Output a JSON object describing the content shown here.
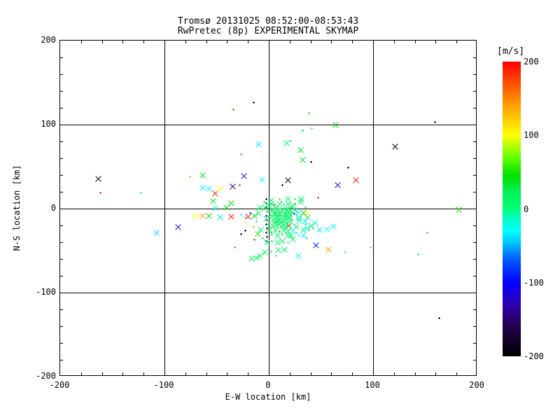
{
  "title": {
    "line1": "Tromsø 20131025 08:52:00-08:53:43",
    "line2": "RwPretec (8p) EXPERIMENTAL SKYMAP"
  },
  "axes": {
    "x": {
      "label": "E-W location [km]",
      "min": -200,
      "max": 200,
      "major_ticks": [
        -200,
        -100,
        0,
        100,
        200
      ],
      "minor_step": 20,
      "gridlines": [
        -100,
        0,
        100
      ]
    },
    "y": {
      "label": "N-S location [km]",
      "min": -200,
      "max": 200,
      "major_ticks": [
        200,
        100,
        0,
        -100,
        -200
      ],
      "minor_step": 20,
      "gridlines": [
        -100,
        0,
        100
      ]
    }
  },
  "colorbar": {
    "label": "[m/s]",
    "min": -200,
    "max": 200,
    "ticks": [
      200,
      100,
      0,
      -100,
      -200
    ],
    "stops": [
      [
        -200,
        "#000000"
      ],
      [
        -160,
        "#20004a"
      ],
      [
        -130,
        "#3000b0"
      ],
      [
        -100,
        "#0000ff"
      ],
      [
        -70,
        "#0055ff"
      ],
      [
        -45,
        "#00c8ff"
      ],
      [
        -30,
        "#00ffff"
      ],
      [
        -10,
        "#00ffb4"
      ],
      [
        0,
        "#00ff78"
      ],
      [
        25,
        "#00f050"
      ],
      [
        45,
        "#00e000"
      ],
      [
        70,
        "#64ff00"
      ],
      [
        100,
        "#ffff00"
      ],
      [
        140,
        "#ffa000"
      ],
      [
        170,
        "#ff5000"
      ],
      [
        200,
        "#ff0000"
      ]
    ]
  },
  "chart_data": {
    "type": "scatter",
    "title": "Tromsø 20131025 08:52:00-08:53:43 RwPretec (8p) EXPERIMENTAL SKYMAP",
    "xlabel": "E-W location [km]",
    "ylabel": "N-S location [km]",
    "value_unit": "m/s",
    "xlim": [
      -200,
      200
    ],
    "ylim": [
      -200,
      200
    ],
    "vlim": [
      -200,
      200
    ],
    "grid": true,
    "markers": {
      "x": "cross",
      "d": "small-dot"
    },
    "points": [
      [
        -164,
        36,
        -200,
        "x"
      ],
      [
        -162,
        19,
        195,
        "d"
      ],
      [
        -123,
        19,
        -35,
        "d"
      ],
      [
        -108,
        -28,
        -40,
        "x"
      ],
      [
        -87,
        -22,
        -90,
        "x"
      ],
      [
        -76,
        38,
        140,
        "d"
      ],
      [
        -71,
        -8,
        100,
        "x"
      ],
      [
        -64,
        -8,
        140,
        "x"
      ],
      [
        -64,
        40,
        40,
        "x"
      ],
      [
        -64,
        25,
        -35,
        "x"
      ],
      [
        -58,
        -8,
        45,
        "x"
      ],
      [
        -58,
        24,
        -30,
        "x"
      ],
      [
        -54,
        9,
        42,
        "x"
      ],
      [
        -52,
        18,
        190,
        "x"
      ],
      [
        -52,
        1,
        -35,
        "x"
      ],
      [
        -47,
        24,
        100,
        "x"
      ],
      [
        -47,
        -10,
        -38,
        "x"
      ],
      [
        -41,
        2,
        40,
        "x"
      ],
      [
        -36,
        7,
        45,
        "x"
      ],
      [
        -36,
        -9,
        190,
        "x"
      ],
      [
        -35,
        27,
        -150,
        "x"
      ],
      [
        -34,
        118,
        185,
        "d"
      ],
      [
        -33,
        -46,
        45,
        "d"
      ],
      [
        -28,
        28,
        190,
        "d"
      ],
      [
        -27,
        65,
        40,
        "d"
      ],
      [
        -27,
        -7,
        -35,
        "d"
      ],
      [
        -27,
        -30,
        -200,
        "d"
      ],
      [
        -24,
        39,
        -90,
        "x"
      ],
      [
        -23,
        -10,
        -35,
        "d"
      ],
      [
        -23,
        -26,
        -200,
        "d"
      ],
      [
        -23,
        -16,
        100,
        "d"
      ],
      [
        -20,
        -9,
        190,
        "x"
      ],
      [
        -18,
        -5,
        -95,
        "d"
      ],
      [
        -15,
        127,
        -200,
        "d"
      ],
      [
        -15,
        -22,
        140,
        "d"
      ],
      [
        -14,
        -37,
        190,
        "d"
      ],
      [
        -10,
        77,
        -35,
        "x"
      ],
      [
        -7,
        35,
        -30,
        "x"
      ],
      [
        13,
        28,
        -200,
        "d"
      ],
      [
        17,
        78,
        10,
        "x"
      ],
      [
        18,
        34,
        -200,
        "x"
      ],
      [
        21,
        81,
        8,
        "d"
      ],
      [
        24,
        -6,
        -95,
        "d"
      ],
      [
        28,
        -11,
        -35,
        "x"
      ],
      [
        28,
        -56,
        -30,
        "x"
      ],
      [
        30,
        70,
        40,
        "x"
      ],
      [
        32,
        58,
        40,
        "x"
      ],
      [
        32,
        93,
        42,
        "d"
      ],
      [
        34,
        -15,
        -35,
        "x"
      ],
      [
        36,
        -23,
        -35,
        "x"
      ],
      [
        37,
        -5,
        100,
        "x"
      ],
      [
        38,
        114,
        40,
        "d"
      ],
      [
        40,
        56,
        -200,
        "d"
      ],
      [
        41,
        96,
        10,
        "d"
      ],
      [
        42,
        -23,
        8,
        "d"
      ],
      [
        44,
        -17,
        -35,
        "x"
      ],
      [
        45,
        -43,
        -90,
        "x"
      ],
      [
        47,
        13,
        190,
        "d"
      ],
      [
        48,
        -25,
        -35,
        "x"
      ],
      [
        56,
        -24,
        -30,
        "x"
      ],
      [
        57,
        -48,
        140,
        "x"
      ],
      [
        62,
        -21,
        -30,
        "x"
      ],
      [
        64,
        100,
        45,
        "x"
      ],
      [
        66,
        28,
        -120,
        "x"
      ],
      [
        73,
        -52,
        -20,
        "d"
      ],
      [
        76,
        49,
        -200,
        "d"
      ],
      [
        83,
        34,
        190,
        "x"
      ],
      [
        97,
        -46,
        -35,
        "d"
      ],
      [
        121,
        74,
        -200,
        "x"
      ],
      [
        143,
        -54,
        10,
        "d"
      ],
      [
        152,
        -28,
        12,
        "d"
      ],
      [
        159,
        103,
        -200,
        "d"
      ],
      [
        163,
        -130,
        -200,
        "d"
      ],
      [
        182,
        -1,
        45,
        "x"
      ],
      [
        -17,
        -59,
        5,
        "x"
      ],
      [
        -12,
        -58,
        8,
        "x"
      ],
      [
        -9,
        -56,
        10,
        "x"
      ],
      [
        -4,
        -52,
        8,
        "x"
      ],
      [
        2,
        -51,
        6,
        "d"
      ],
      [
        9,
        -49,
        10,
        "x"
      ],
      [
        15,
        -48,
        12,
        "x"
      ],
      [
        7,
        -56,
        8,
        "d"
      ],
      [
        -3,
        12,
        -185,
        "d"
      ],
      [
        -3,
        7,
        -185,
        "d"
      ],
      [
        -3,
        2,
        -185,
        "d"
      ],
      [
        -2,
        -3,
        -185,
        "d"
      ],
      [
        -3,
        -8,
        -185,
        "d"
      ],
      [
        -2,
        -13,
        -185,
        "d"
      ],
      [
        -3,
        -18,
        -185,
        "d"
      ],
      [
        -2,
        -23,
        -185,
        "d"
      ],
      [
        -3,
        -28,
        -185,
        "d"
      ],
      [
        -2,
        -33,
        -185,
        "d"
      ],
      [
        -3,
        -38,
        -185,
        "d"
      ],
      [
        5,
        5,
        190,
        "d"
      ],
      [
        19,
        -20,
        185,
        "x"
      ],
      [
        6,
        -5,
        185,
        "d"
      ],
      [
        3,
        -2,
        5,
        "x"
      ],
      [
        5,
        0,
        12,
        "d"
      ],
      [
        7,
        1,
        8,
        "x"
      ],
      [
        9,
        -1,
        15,
        "x"
      ],
      [
        11,
        0,
        3,
        "d"
      ],
      [
        13,
        -2,
        10,
        "x"
      ],
      [
        15,
        1,
        18,
        "d"
      ],
      [
        17,
        -1,
        6,
        "x"
      ],
      [
        19,
        0,
        14,
        "x"
      ],
      [
        21,
        -3,
        9,
        "d"
      ],
      [
        4,
        -5,
        11,
        "x"
      ],
      [
        6,
        -4,
        7,
        "d"
      ],
      [
        8,
        -6,
        16,
        "x"
      ],
      [
        10,
        -5,
        4,
        "x"
      ],
      [
        12,
        -4,
        13,
        "d"
      ],
      [
        14,
        -6,
        8,
        "x"
      ],
      [
        16,
        -5,
        17,
        "d"
      ],
      [
        18,
        -4,
        5,
        "x"
      ],
      [
        20,
        -6,
        12,
        "x"
      ],
      [
        22,
        -5,
        9,
        "d"
      ],
      [
        3,
        -9,
        6,
        "x"
      ],
      [
        5,
        -8,
        14,
        "d"
      ],
      [
        7,
        -10,
        10,
        "x"
      ],
      [
        9,
        -9,
        2,
        "x"
      ],
      [
        11,
        -8,
        16,
        "d"
      ],
      [
        13,
        -10,
        7,
        "x"
      ],
      [
        15,
        -9,
        13,
        "d"
      ],
      [
        17,
        -8,
        5,
        "x"
      ],
      [
        19,
        -10,
        11,
        "x"
      ],
      [
        21,
        -9,
        15,
        "d"
      ],
      [
        4,
        -13,
        8,
        "x"
      ],
      [
        6,
        -12,
        3,
        "d"
      ],
      [
        8,
        -14,
        12,
        "x"
      ],
      [
        10,
        -13,
        18,
        "x"
      ],
      [
        12,
        -12,
        6,
        "d"
      ],
      [
        14,
        -14,
        10,
        "x"
      ],
      [
        16,
        -13,
        15,
        "d"
      ],
      [
        18,
        -12,
        4,
        "x"
      ],
      [
        20,
        -14,
        13,
        "x"
      ],
      [
        22,
        -13,
        7,
        "d"
      ],
      [
        5,
        -17,
        11,
        "x"
      ],
      [
        7,
        -16,
        16,
        "d"
      ],
      [
        9,
        -18,
        5,
        "x"
      ],
      [
        11,
        -17,
        9,
        "x"
      ],
      [
        13,
        -16,
        14,
        "d"
      ],
      [
        15,
        -18,
        8,
        "x"
      ],
      [
        17,
        -17,
        12,
        "d"
      ],
      [
        19,
        -16,
        6,
        "x"
      ],
      [
        -4,
        2,
        10,
        "x"
      ],
      [
        -2,
        -3,
        45,
        "d"
      ],
      [
        0,
        4,
        8,
        "x"
      ],
      [
        1,
        -7,
        14,
        "d"
      ],
      [
        -3,
        -12,
        6,
        "x"
      ],
      [
        -1,
        -18,
        12,
        "d"
      ],
      [
        0,
        -24,
        9,
        "x"
      ],
      [
        2,
        -28,
        15,
        "d"
      ],
      [
        25,
        -2,
        7,
        "x"
      ],
      [
        27,
        -8,
        13,
        "d"
      ],
      [
        29,
        -14,
        5,
        "x"
      ],
      [
        24,
        -18,
        11,
        "d"
      ],
      [
        26,
        -22,
        16,
        "x"
      ],
      [
        28,
        -4,
        -30,
        "x"
      ],
      [
        30,
        -10,
        8,
        "d"
      ],
      [
        23,
        4,
        12,
        "x"
      ],
      [
        25,
        6,
        45,
        "d"
      ],
      [
        2,
        6,
        9,
        "x"
      ],
      [
        6,
        5,
        15,
        "d"
      ],
      [
        10,
        6,
        6,
        "x"
      ],
      [
        14,
        5,
        13,
        "d"
      ],
      [
        18,
        6,
        10,
        "x"
      ],
      [
        22,
        2,
        4,
        "d"
      ],
      [
        4,
        -21,
        16,
        "x"
      ],
      [
        8,
        -22,
        8,
        "d"
      ],
      [
        12,
        -21,
        12,
        "x"
      ],
      [
        16,
        -22,
        5,
        "x"
      ],
      [
        20,
        -21,
        14,
        "d"
      ],
      [
        6,
        -26,
        10,
        "x"
      ],
      [
        10,
        -27,
        45,
        "d"
      ],
      [
        14,
        -26,
        7,
        "x"
      ],
      [
        18,
        -27,
        13,
        "x"
      ],
      [
        3,
        -31,
        9,
        "d"
      ],
      [
        8,
        -32,
        15,
        "x"
      ],
      [
        13,
        -31,
        6,
        "d"
      ],
      [
        18,
        -32,
        11,
        "x"
      ],
      [
        23,
        -26,
        -30,
        "x"
      ],
      [
        26,
        -28,
        8,
        "d"
      ],
      [
        21,
        -32,
        14,
        "x"
      ],
      [
        12,
        8,
        10,
        "d"
      ],
      [
        -10,
        -5,
        12,
        "x"
      ],
      [
        -12,
        -15,
        8,
        "d"
      ],
      [
        -8,
        -25,
        15,
        "x"
      ],
      [
        -14,
        -8,
        45,
        "x"
      ],
      [
        -6,
        -35,
        10,
        "d"
      ],
      [
        -2,
        -40,
        6,
        "x"
      ],
      [
        3,
        -38,
        13,
        "d"
      ],
      [
        8,
        -40,
        9,
        "x"
      ],
      [
        13,
        -38,
        16,
        "x"
      ],
      [
        18,
        -40,
        5,
        "d"
      ],
      [
        23,
        -36,
        11,
        "x"
      ],
      [
        28,
        -32,
        -30,
        "d"
      ],
      [
        33,
        -25,
        14,
        "x"
      ],
      [
        35,
        -18,
        8,
        "d"
      ],
      [
        37,
        -10,
        12,
        "x"
      ],
      [
        33,
        -5,
        45,
        "x"
      ],
      [
        35,
        2,
        7,
        "d"
      ],
      [
        30,
        8,
        15,
        "x"
      ],
      [
        25,
        12,
        10,
        "d"
      ],
      [
        18,
        12,
        5,
        "x"
      ],
      [
        10,
        12,
        13,
        "d"
      ],
      [
        2,
        10,
        9,
        "x"
      ],
      [
        -5,
        8,
        16,
        "d"
      ],
      [
        -9,
        2,
        11,
        "x"
      ],
      [
        33,
        -32,
        -35,
        "x"
      ],
      [
        38,
        -25,
        8,
        "d"
      ],
      [
        -11,
        -30,
        55,
        "x"
      ],
      [
        31,
        12,
        12,
        "x"
      ],
      [
        36,
        -35,
        6,
        "d"
      ],
      [
        40,
        -20,
        14,
        "x"
      ]
    ]
  }
}
